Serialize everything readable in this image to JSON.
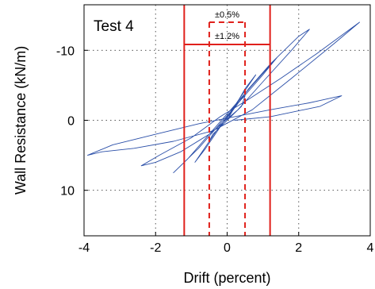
{
  "chart_data": {
    "type": "line",
    "title": "",
    "panel_label": "Test 4",
    "xlabel": "Drift (percent)",
    "ylabel": "Wall Resistance (kN/m)",
    "xlim": [
      -4,
      4
    ],
    "ylim": [
      -16.5,
      16.5
    ],
    "y_axis_inverted": true,
    "x_ticks": [
      -4,
      -2,
      0,
      2,
      4
    ],
    "x_tick_labels": [
      "-4",
      "-2",
      "0",
      "2",
      "4"
    ],
    "y_ticks": [
      -10,
      0,
      10
    ],
    "y_tick_labels": [
      "-10",
      "0",
      "10"
    ],
    "grid": true,
    "colors": {
      "hysteresis": "#2b4fa8",
      "limits": "#e0201b"
    },
    "limit_lines": [
      {
        "label": "±0.5%",
        "x": [
          -0.5,
          0.5
        ],
        "style": "dashed"
      },
      {
        "label": "±1.2%",
        "x": [
          -1.2,
          1.2
        ],
        "style": "solid"
      }
    ],
    "series": [
      {
        "x": [
          0,
          0.4,
          0.5,
          0.3,
          0,
          -0.3,
          -0.5,
          -0.4,
          0,
          0.5,
          0.8,
          0.6,
          0.2,
          -0.2,
          -0.6,
          -0.9,
          -0.7,
          -0.3,
          0.1,
          0.6,
          1.2,
          1.4,
          1.0,
          0.4,
          -0.2,
          -0.8,
          -1.3,
          -1.5,
          -1.1,
          -0.5,
          0.1,
          0.7,
          1.4,
          2.0,
          2.3,
          1.8,
          1.0,
          0.3,
          -0.5,
          -1.3,
          -2.0,
          -2.4,
          -1.9,
          -1.0,
          -0.2,
          0.6,
          1.5,
          2.5,
          3.3,
          3.7,
          3.0,
          1.8,
          0.7,
          -0.4,
          -1.5,
          -2.6,
          -3.5,
          -3.9,
          -3.2,
          -2.0,
          -0.8,
          0.2,
          1.2,
          2.3,
          3.2,
          2.6,
          1.2,
          0.2
        ],
        "y": [
          0,
          -2,
          -3.5,
          -2.5,
          -0.5,
          1.5,
          3,
          2,
          0,
          -4.5,
          -6.5,
          -5,
          -2,
          1,
          4,
          6,
          4.5,
          1.5,
          -1,
          -4.5,
          -8,
          -9,
          -6.5,
          -3,
          0.5,
          4,
          6.5,
          7.5,
          5.5,
          2,
          -1.5,
          -5,
          -9,
          -12,
          -13,
          -10,
          -5.5,
          -1.5,
          2,
          4.5,
          6,
          6.5,
          5,
          2.5,
          -0.5,
          -3,
          -6,
          -9.5,
          -12.5,
          -14,
          -11,
          -6,
          -1.5,
          1.5,
          3,
          4,
          4.5,
          5,
          3.5,
          2,
          0.5,
          -0.5,
          -1.5,
          -2.5,
          -3.5,
          -2,
          -0.5,
          0
        ]
      }
    ]
  }
}
